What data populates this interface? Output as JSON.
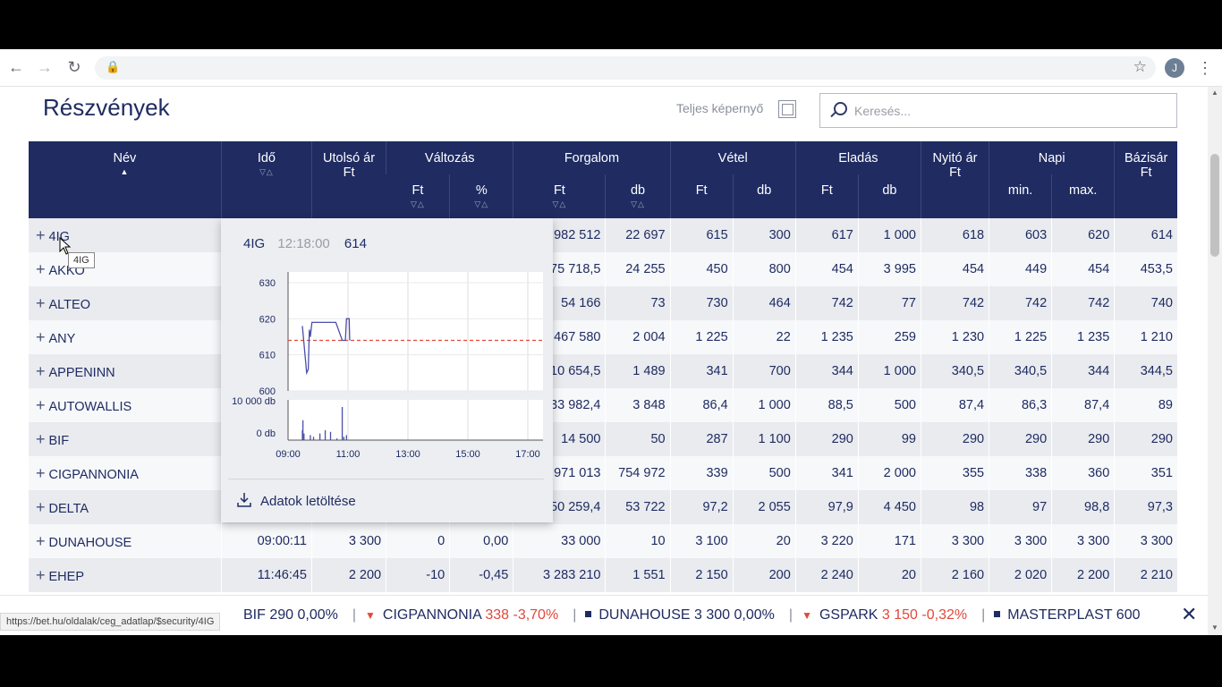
{
  "page": {
    "title": "Részvények",
    "fullscreen_label": "Teljes képernyő",
    "search_placeholder": "Keresés..."
  },
  "profile_initial": "J",
  "table": {
    "headers": {
      "name": "Név",
      "time": "Idő",
      "last_price": "Utolsó ár",
      "last_price_unit": "Ft",
      "change": "Változás",
      "change_ft": "Ft",
      "change_pct": "%",
      "turnover": "Forgalom",
      "turnover_ft": "Ft",
      "turnover_db": "db",
      "bid": "Vétel",
      "bid_ft": "Ft",
      "bid_db": "db",
      "ask": "Eladás",
      "ask_ft": "Ft",
      "ask_db": "db",
      "open": "Nyitó ár",
      "open_unit": "Ft",
      "daily": "Napi",
      "daily_min": "min.",
      "daily_max": "max.",
      "base": "Bázisár",
      "base_unit": "Ft"
    },
    "rows": [
      {
        "name": "4IG",
        "time": "",
        "last": "",
        "chg_ft": "",
        "chg_pct": "",
        "turn_ft": "982 512",
        "turn_db": "22 697",
        "bid_ft": "615",
        "bid_db": "300",
        "ask_ft": "617",
        "ask_db": "1 000",
        "open": "618",
        "min": "603",
        "max": "620",
        "base": "614"
      },
      {
        "name": "AKKO",
        "time": "",
        "last": "",
        "chg_ft": "",
        "chg_pct": "",
        "turn_ft": "75 718,5",
        "turn_db": "24 255",
        "bid_ft": "450",
        "bid_db": "800",
        "ask_ft": "454",
        "ask_db": "3 995",
        "open": "454",
        "min": "449",
        "max": "454",
        "base": "453,5"
      },
      {
        "name": "ALTEO",
        "time": "",
        "last": "",
        "chg_ft": "",
        "chg_pct": "",
        "turn_ft": "54 166",
        "turn_db": "73",
        "bid_ft": "730",
        "bid_db": "464",
        "ask_ft": "742",
        "ask_db": "77",
        "open": "742",
        "min": "742",
        "max": "742",
        "base": "740"
      },
      {
        "name": "ANY",
        "time": "",
        "last": "",
        "chg_ft": "",
        "chg_pct": "",
        "turn_ft": "467 580",
        "turn_db": "2 004",
        "bid_ft": "1 225",
        "bid_db": "22",
        "ask_ft": "1 235",
        "ask_db": "259",
        "open": "1 230",
        "min": "1 225",
        "max": "1 235",
        "base": "1 210"
      },
      {
        "name": "APPENINN",
        "time": "",
        "last": "",
        "chg_ft": "",
        "chg_pct": "",
        "turn_ft": "10 654,5",
        "turn_db": "1 489",
        "bid_ft": "341",
        "bid_db": "700",
        "ask_ft": "344",
        "ask_db": "1 000",
        "open": "340,5",
        "min": "340,5",
        "max": "344",
        "base": "344,5"
      },
      {
        "name": "AUTOWALLIS",
        "time": "",
        "last": "",
        "chg_ft": "",
        "chg_pct": "",
        "turn_ft": "33 982,4",
        "turn_db": "3 848",
        "bid_ft": "86,4",
        "bid_db": "1 000",
        "ask_ft": "88,5",
        "ask_db": "500",
        "open": "87,4",
        "min": "86,3",
        "max": "87,4",
        "base": "89"
      },
      {
        "name": "BIF",
        "time": "",
        "last": "",
        "chg_ft": "",
        "chg_pct": "",
        "turn_ft": "14 500",
        "turn_db": "50",
        "bid_ft": "287",
        "bid_db": "1 100",
        "ask_ft": "290",
        "ask_db": "99",
        "open": "290",
        "min": "290",
        "max": "290",
        "base": "290"
      },
      {
        "name": "CIGPANNONIA",
        "time": "",
        "last": "",
        "chg_ft": "",
        "chg_pct": "",
        "turn_ft": "971 013",
        "turn_db": "754 972",
        "bid_ft": "339",
        "bid_db": "500",
        "ask_ft": "341",
        "ask_db": "2 000",
        "open": "355",
        "min": "338",
        "max": "360",
        "base": "351"
      },
      {
        "name": "DELTA",
        "time": "",
        "last": "",
        "chg_ft": "",
        "chg_pct": "",
        "turn_ft": "50 259,4",
        "turn_db": "53 722",
        "bid_ft": "97,2",
        "bid_db": "2 055",
        "ask_ft": "97,9",
        "ask_db": "4 450",
        "open": "98",
        "min": "97",
        "max": "98,8",
        "base": "97,3"
      },
      {
        "name": "DUNAHOUSE",
        "time": "09:00:11",
        "last": "3 300",
        "chg_ft": "0",
        "chg_pct": "0,00",
        "turn_ft": "33 000",
        "turn_db": "10",
        "bid_ft": "3 100",
        "bid_db": "20",
        "ask_ft": "3 220",
        "ask_db": "171",
        "open": "3 300",
        "min": "3 300",
        "max": "3 300",
        "base": "3 300"
      },
      {
        "name": "EHEP",
        "time": "11:46:45",
        "last": "2 200",
        "chg_ft": "-10",
        "chg_pct": "-0,45",
        "turn_ft": "3 283 210",
        "turn_db": "1 551",
        "bid_ft": "2 150",
        "bid_db": "200",
        "ask_ft": "2 240",
        "ask_db": "20",
        "open": "2 160",
        "min": "2 020",
        "max": "2 200",
        "base": "2 210"
      }
    ]
  },
  "popover": {
    "symbol": "4IG",
    "time": "12:18:00",
    "price": "614",
    "download_label": "Adatok letöltése",
    "price_ticks": [
      "630",
      "620",
      "610",
      "600"
    ],
    "volume_ticks": [
      "10 000 db",
      "0 db"
    ],
    "time_ticks": [
      "09:00",
      "11:00",
      "13:00",
      "15:00",
      "17:00"
    ],
    "base_price": 614,
    "colors": {
      "line": "#4a4fa8",
      "base": "#e0483c"
    }
  },
  "cursor_tooltip": "4IG",
  "status_url": "https://bet.hu/oldalak/ceg_adatlap/$security/4IG",
  "ticker": [
    {
      "name": "BIF",
      "price": "290",
      "change": "0,00%",
      "dir": "flat"
    },
    {
      "name": "CIGPANNONIA",
      "price": "338",
      "change": "-3,70%",
      "dir": "down"
    },
    {
      "name": "DUNAHOUSE",
      "price": "3 300",
      "change": "0,00%",
      "dir": "flat"
    },
    {
      "name": "GSPARK",
      "price": "3 150",
      "change": "-0,32%",
      "dir": "down"
    },
    {
      "name": "MASTERPLAST",
      "price": "600",
      "change": "",
      "dir": "flat"
    }
  ]
}
